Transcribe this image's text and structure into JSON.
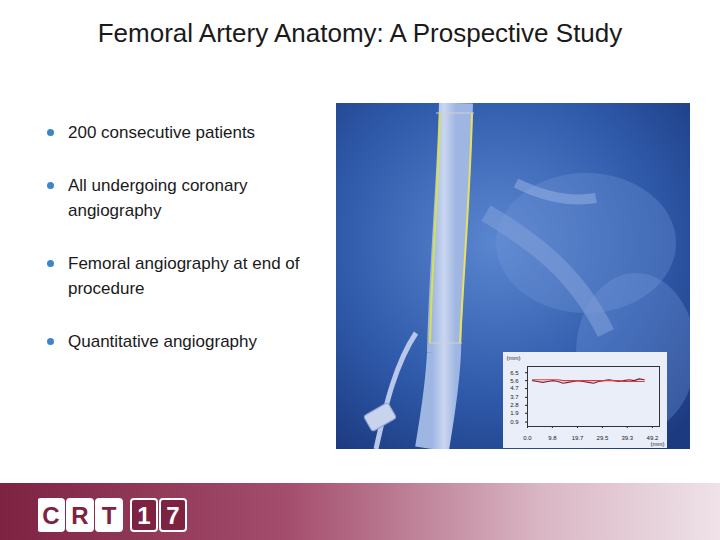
{
  "title": "Femoral Artery Anatomy: A Prospective Study",
  "bullets": [
    "200 consecutive patients",
    "All undergoing coronary angiography",
    "Femoral angiography at end of procedure",
    "Quantitative angiography"
  ],
  "logo": {
    "letters": [
      "C",
      "R",
      "T"
    ],
    "digits": [
      "1",
      "7"
    ]
  },
  "chart_data": {
    "type": "line",
    "x_label": "(mm)",
    "y_label": "(mm)",
    "x": [
      2,
      4,
      6,
      8,
      10,
      12,
      14,
      16,
      18,
      20,
      22,
      24,
      26,
      28,
      30,
      32,
      34,
      36,
      38,
      40,
      42,
      44,
      46
    ],
    "series": [
      {
        "color": "#7a1f35",
        "values": [
          5.6,
          5.5,
          5.4,
          5.5,
          5.6,
          5.5,
          5.3,
          5.4,
          5.5,
          5.6,
          5.5,
          5.4,
          5.3,
          5.5,
          5.6,
          5.7,
          5.6,
          5.5,
          5.6,
          5.7,
          5.6,
          5.8,
          5.7
        ]
      },
      {
        "color": "#e03a3a",
        "values": [
          5.7,
          5.7,
          5.7,
          5.7,
          5.7,
          5.7,
          5.6,
          5.6,
          5.6,
          5.6,
          5.6,
          5.6,
          5.6,
          5.6,
          5.6,
          5.6,
          5.6,
          5.6,
          5.5,
          5.5,
          5.5,
          5.5,
          5.5
        ]
      }
    ],
    "xlim": [
      0,
      52
    ],
    "xticks": [
      {
        "value": 0,
        "label": "0.0"
      },
      9.8,
      19.7,
      29.5,
      39.3,
      49.2
    ],
    "ylim": [
      0.4,
      7.2
    ],
    "yticks": [
      0.9,
      1.9,
      2.8,
      3.7,
      4.7,
      5.6,
      6.5
    ],
    "grid": false
  }
}
